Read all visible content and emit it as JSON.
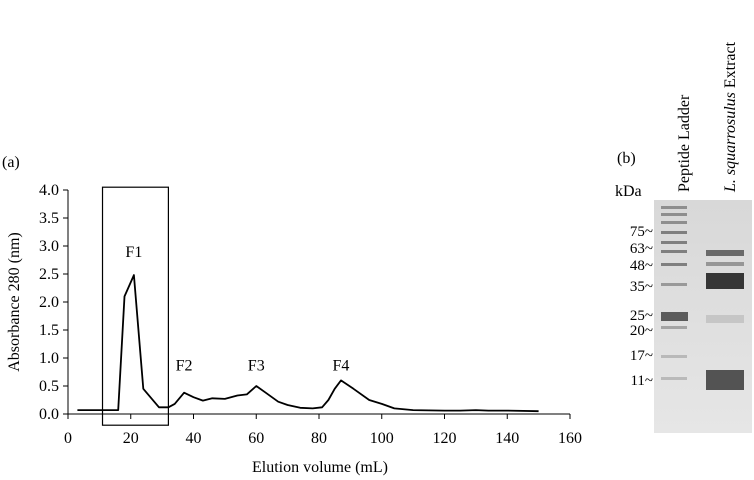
{
  "panel_a": {
    "label": "(a)",
    "chart_data": {
      "type": "line",
      "xlabel": "Elution volume (mL)",
      "ylabel": "Absorbance 280 (nm)",
      "xlim": [
        0,
        160
      ],
      "ylim": [
        0,
        4.0
      ],
      "x_ticks": [
        0,
        20,
        40,
        60,
        80,
        100,
        120,
        140,
        160
      ],
      "y_ticks": [
        "0.0",
        "0.5",
        "1.0",
        "1.5",
        "2.0",
        "2.5",
        "3.0",
        "3.5",
        "4.0"
      ],
      "grid": false,
      "series": [
        {
          "x": [
            3,
            10,
            16,
            18,
            21,
            24,
            29,
            32,
            34,
            37,
            40,
            43,
            46,
            50,
            54,
            57,
            60,
            63,
            67,
            70,
            74,
            78,
            81,
            83,
            85,
            87,
            91,
            96,
            100,
            104,
            110,
            120,
            125,
            130,
            134,
            140,
            150
          ],
          "y": [
            0.07,
            0.07,
            0.07,
            2.1,
            2.48,
            0.45,
            0.12,
            0.12,
            0.18,
            0.38,
            0.3,
            0.24,
            0.28,
            0.27,
            0.33,
            0.35,
            0.5,
            0.38,
            0.22,
            0.16,
            0.11,
            0.1,
            0.12,
            0.25,
            0.45,
            0.6,
            0.45,
            0.25,
            0.18,
            0.1,
            0.07,
            0.06,
            0.06,
            0.07,
            0.06,
            0.06,
            0.05
          ]
        }
      ],
      "annotations": [
        {
          "text": "F1",
          "x": 21,
          "y": 2.8
        },
        {
          "text": "F2",
          "x": 37,
          "y": 0.78
        },
        {
          "text": "F3",
          "x": 60,
          "y": 0.78
        },
        {
          "text": "F4",
          "x": 87,
          "y": 0.78
        }
      ],
      "highlight_box": {
        "x": [
          11,
          32
        ],
        "y": [
          -0.2,
          4.05
        ]
      }
    }
  },
  "panel_b": {
    "label": "(b)",
    "unit_label": "kDa",
    "lane_labels": {
      "ladder": "Peptide Ladder",
      "extract_italic": "L. squarrosulus",
      "extract_rest": " Extract"
    },
    "markers": [
      "75~",
      "63~",
      "48~",
      "35~",
      "25~",
      "20~",
      "17~",
      "11~"
    ],
    "gel_color": "#dcdcdc"
  }
}
